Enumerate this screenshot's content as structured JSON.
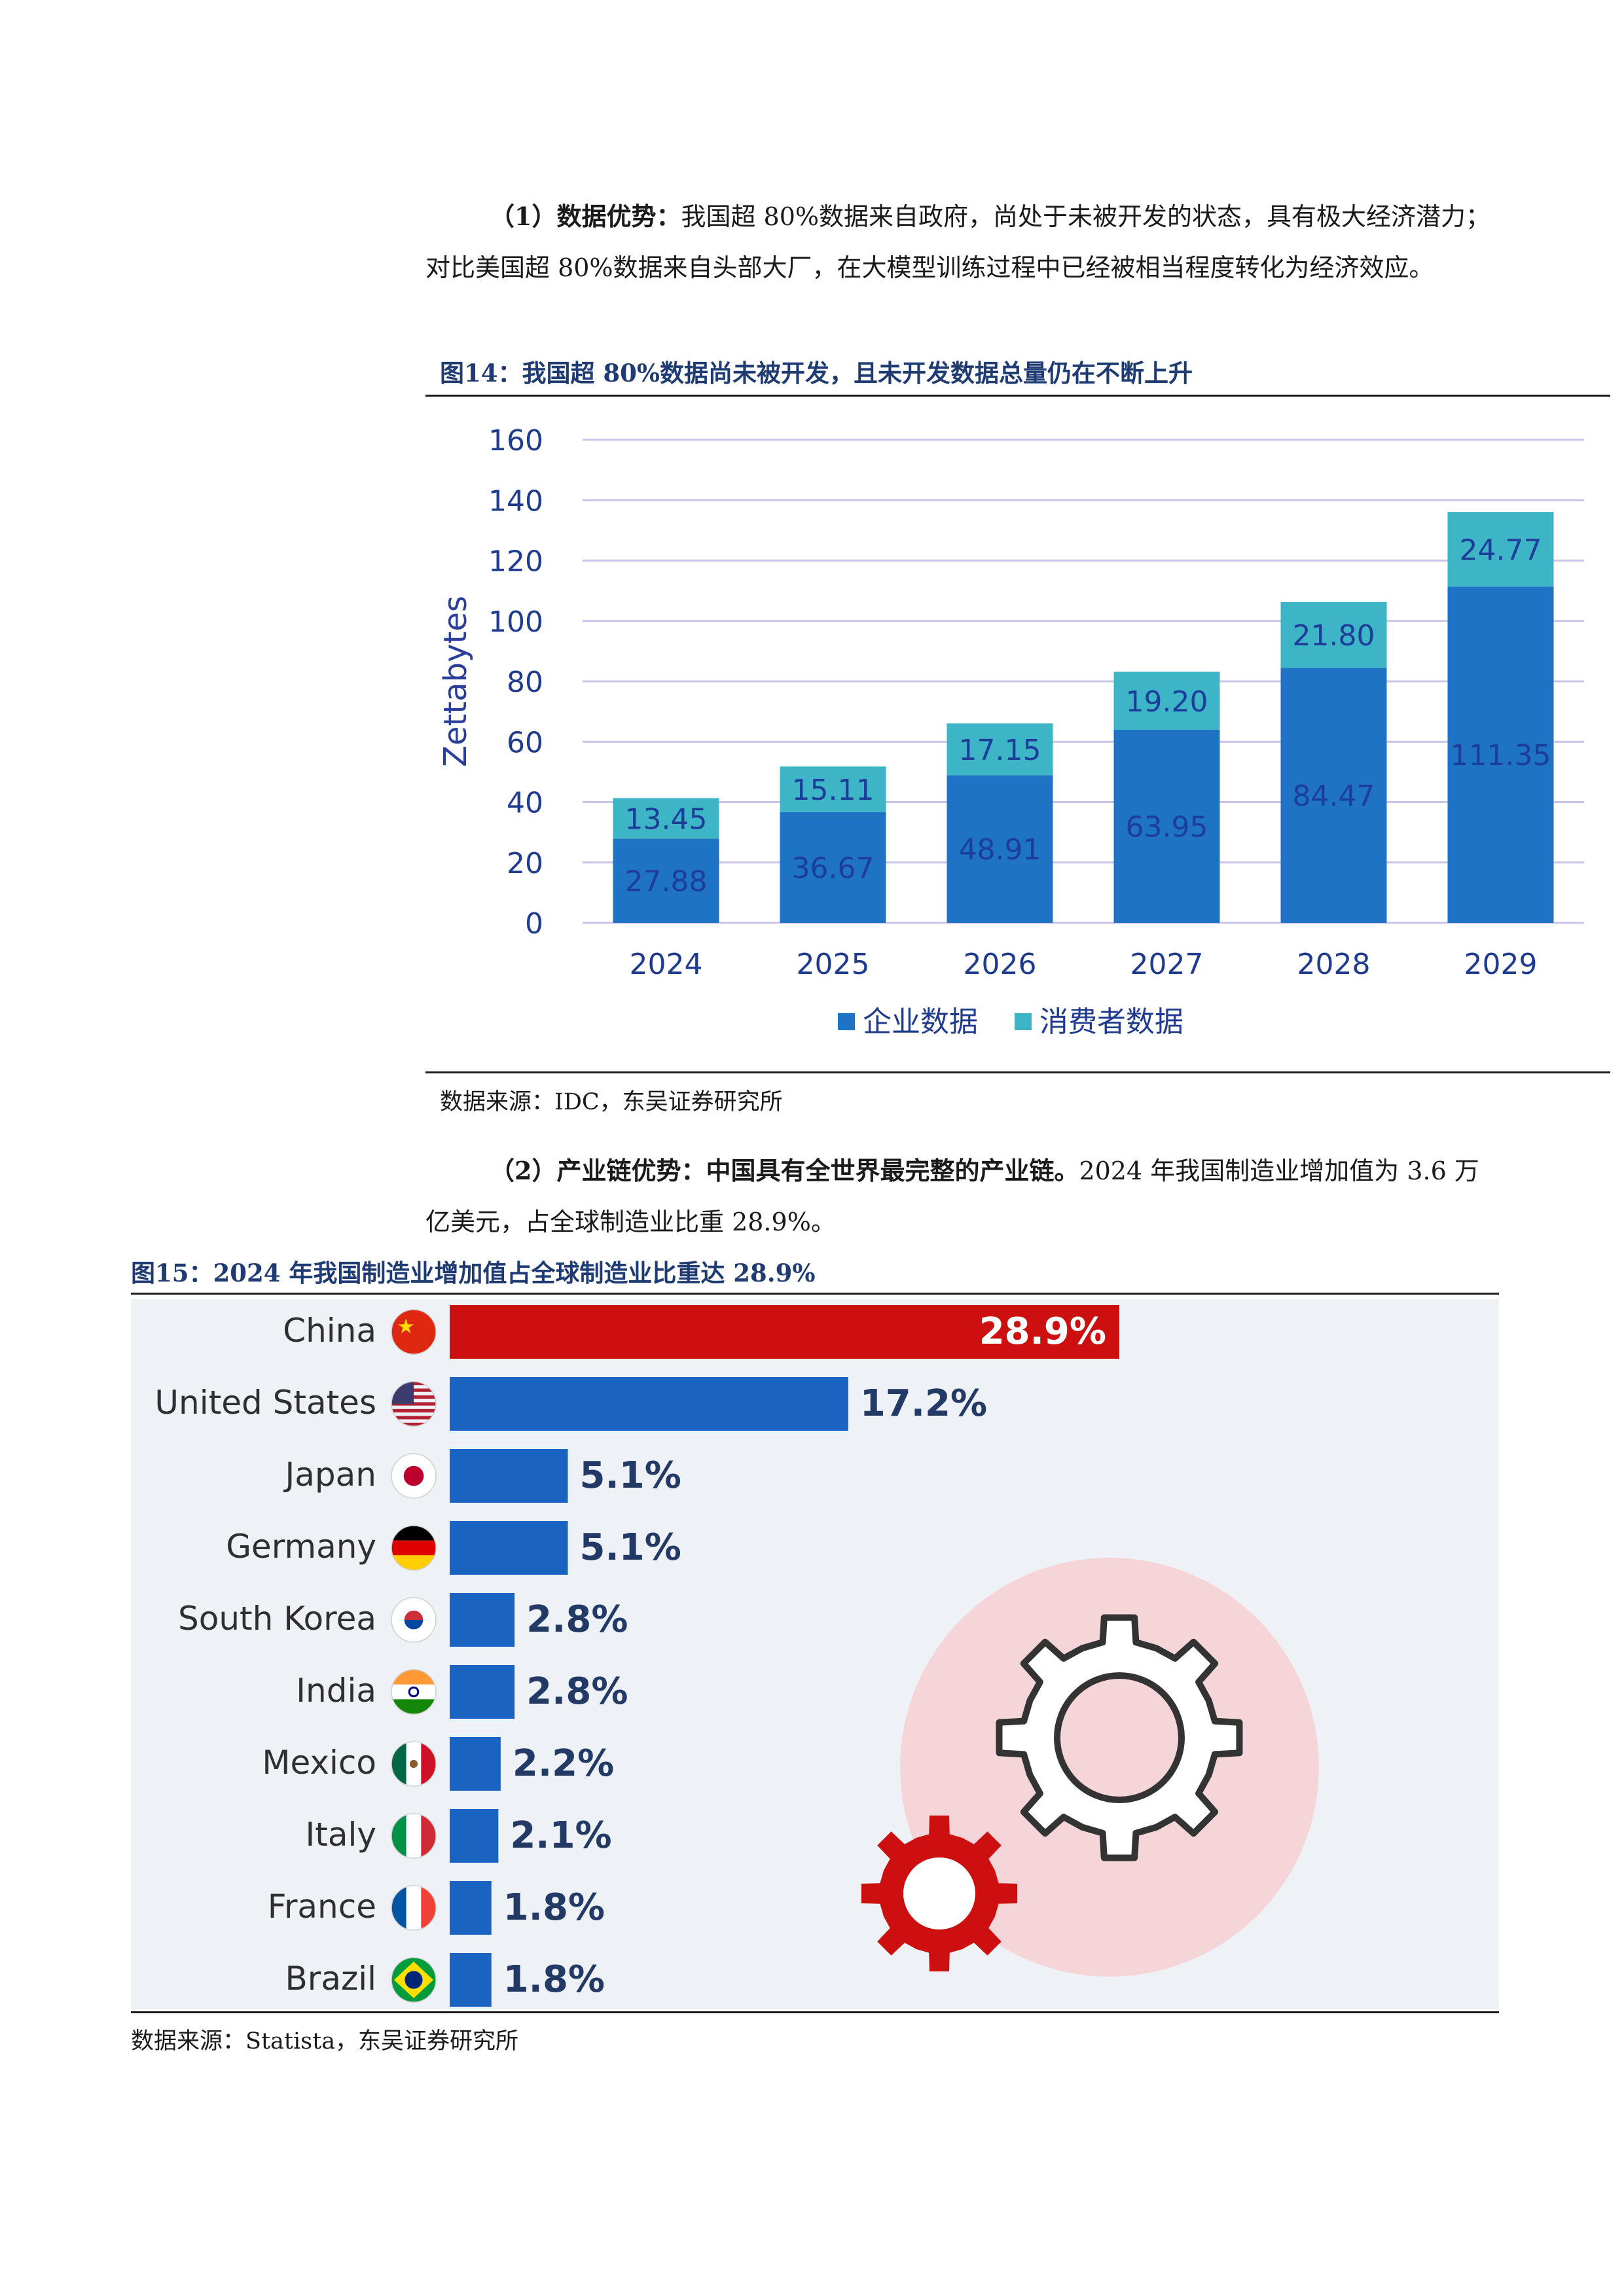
{
  "section1": {
    "lead": "（1）数据优势：",
    "body": "我国超 80%数据来自政府，尚处于未被开发的状态，具有极大经济潜力；对比美国超 80%数据来自头部大厂，在大模型训练过程中已经被相当程度转化为经济效应。"
  },
  "figure14": {
    "title": "图14：我国超 80%数据尚未被开发，且未开发数据总量仍在不断上升",
    "source": "数据来源：IDC，东吴证券研究所"
  },
  "section2": {
    "lead": "（2）产业链优势：中国具有全世界最完整的产业链。",
    "body": "2024 年我国制造业增加值为 3.6 万亿美元，占全球制造业比重 28.9%。"
  },
  "figure15": {
    "title": "图15：2024 年我国制造业增加值占全球制造业比重达 28.9%",
    "source": "数据来源：Statista，东吴证券研究所"
  },
  "chart_data": [
    {
      "type": "bar",
      "stacked": true,
      "categories": [
        "2024",
        "2025",
        "2026",
        "2027",
        "2028",
        "2029"
      ],
      "series": [
        {
          "name": "企业数据",
          "values": [
            27.88,
            36.67,
            48.91,
            63.95,
            84.47,
            111.35
          ],
          "color": "#1f73c4"
        },
        {
          "name": "消费者数据",
          "values": [
            13.45,
            15.11,
            17.15,
            19.2,
            21.8,
            24.77
          ],
          "color": "#3db5c6"
        }
      ],
      "ylabel": "Zettabytes",
      "ylim": [
        0,
        160
      ],
      "yticks": [
        0,
        20,
        40,
        60,
        80,
        100,
        120,
        140,
        160
      ],
      "grid": true,
      "legend": "bottom"
    },
    {
      "type": "bar",
      "orientation": "horizontal",
      "categories": [
        "China",
        "United States",
        "Japan",
        "Germany",
        "South Korea",
        "India",
        "Mexico",
        "Italy",
        "France",
        "Brazil"
      ],
      "values": [
        28.9,
        17.2,
        5.1,
        5.1,
        2.8,
        2.8,
        2.2,
        2.1,
        1.8,
        1.8
      ],
      "labels": [
        "28.9%",
        "17.2%",
        "5.1%",
        "5.1%",
        "2.8%",
        "2.8%",
        "2.2%",
        "2.1%",
        "1.8%",
        "1.8%"
      ],
      "flags": [
        "china-flag-icon",
        "usa-flag-icon",
        "japan-flag-icon",
        "germany-flag-icon",
        "south-korea-flag-icon",
        "india-flag-icon",
        "mexico-flag-icon",
        "italy-flag-icon",
        "france-flag-icon",
        "brazil-flag-icon"
      ],
      "colors": {
        "highlight": "#cc0f0f",
        "bar": "#1a63c0",
        "background": "#eef2f7"
      },
      "decoration": "gear-icons"
    }
  ]
}
